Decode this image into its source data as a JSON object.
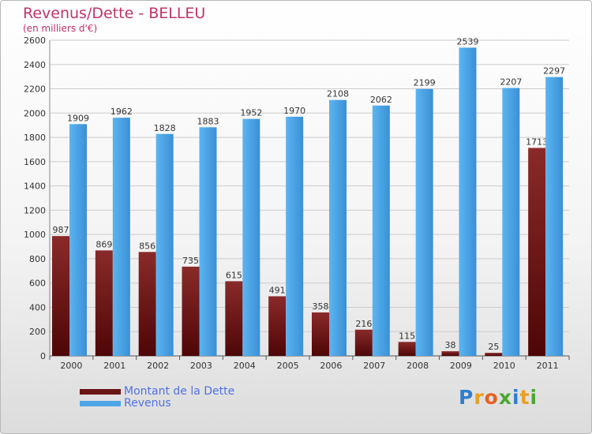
{
  "chart_data": {
    "type": "bar",
    "title": "Revenus/Dette - BELLEU",
    "subtitle": "(en milliers d'€)",
    "categories": [
      "2000",
      "2001",
      "2002",
      "2003",
      "2004",
      "2005",
      "2006",
      "2007",
      "2008",
      "2009",
      "2010",
      "2011"
    ],
    "series": [
      {
        "name": "Montant de la Dette",
        "color": "#6b1414",
        "values": [
          987,
          869,
          856,
          735,
          615,
          491,
          358,
          216,
          115,
          38,
          25,
          1713
        ]
      },
      {
        "name": "Revenus",
        "color": "#4ea6e6",
        "values": [
          1909,
          1962,
          1828,
          1883,
          1952,
          1970,
          2108,
          2062,
          2199,
          2539,
          2207,
          2297
        ]
      }
    ],
    "ylim": [
      0,
      2600
    ],
    "yticks": [
      0,
      200,
      400,
      600,
      800,
      1000,
      1200,
      1400,
      1600,
      1800,
      2000,
      2200,
      2400,
      2600
    ],
    "grid": true,
    "legend_position": "bottom-left"
  },
  "logo": {
    "text": "Proxiti",
    "colors": [
      "#2e7fd0",
      "#e8a020",
      "#e86020",
      "#4aa830",
      "#2e7fd0",
      "#e8a020",
      "#4aa830"
    ]
  }
}
